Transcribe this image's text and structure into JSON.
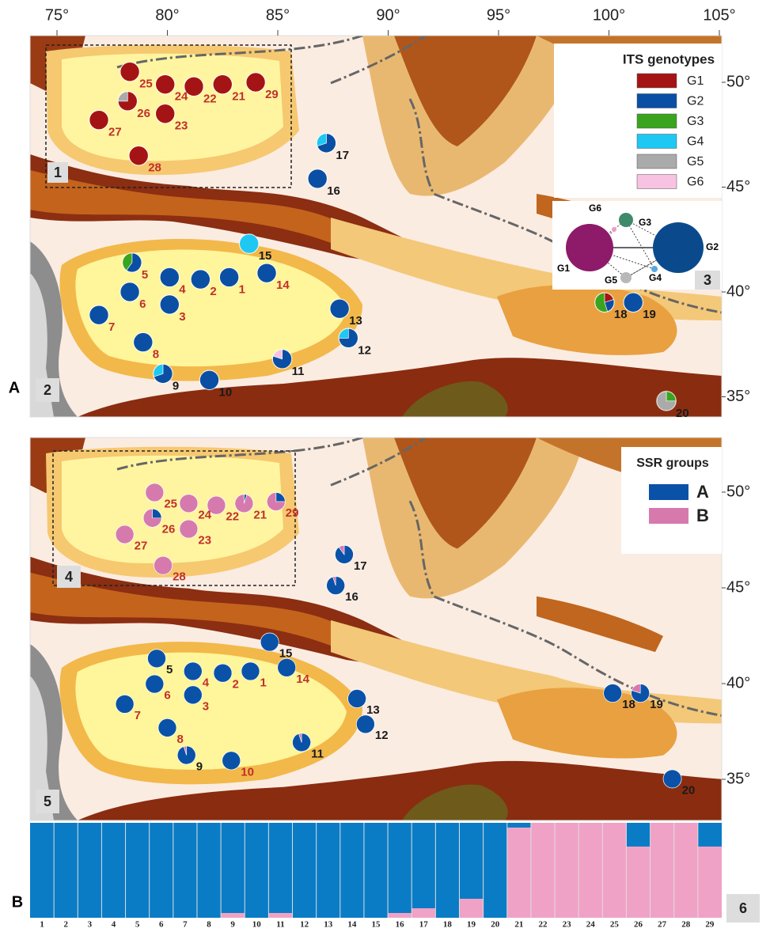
{
  "map_axes": {
    "lon_ticks": [
      {
        "value": 75,
        "label": "75°"
      },
      {
        "value": 80,
        "label": "80°"
      },
      {
        "value": 85,
        "label": "85°"
      },
      {
        "value": 90,
        "label": "90°"
      },
      {
        "value": 95,
        "label": "95°"
      },
      {
        "value": 100,
        "label": "100°"
      },
      {
        "value": 105,
        "label": "105°"
      }
    ],
    "lat_ticks": [
      {
        "value": 50,
        "label": "50°"
      },
      {
        "value": 45,
        "label": "45°"
      },
      {
        "value": 40,
        "label": "40°"
      },
      {
        "value": 35,
        "label": "35°"
      }
    ]
  },
  "panel_a": {
    "label": "A",
    "legend_title": "ITS  genotypes",
    "boxes": [
      "1",
      "2",
      "3"
    ],
    "genotypes": [
      {
        "name": "G1",
        "color": "#a51414"
      },
      {
        "name": "G2",
        "color": "#0a4fa3"
      },
      {
        "name": "G3",
        "color": "#3aa41e"
      },
      {
        "name": "G4",
        "color": "#1ec8f2"
      },
      {
        "name": "G5",
        "color": "#aaaaaa"
      },
      {
        "name": "G6",
        "color": "#f8c2e2"
      }
    ]
  },
  "panel_b": {
    "label": "B",
    "legend_title": "SSR groups",
    "boxes": [
      "4",
      "5",
      "6"
    ],
    "groups": [
      {
        "name": "A",
        "color": "#0a52a8",
        "bar_color": "#0a7cc6"
      },
      {
        "name": "B",
        "color": "#d67aae",
        "bar_color": "#f0a2c6"
      }
    ]
  },
  "sites": [
    {
      "label": "1",
      "lon": 82.8,
      "lat": 40.7,
      "its": [
        0,
        100,
        0,
        0,
        0,
        0
      ],
      "ssr": [
        100,
        0
      ],
      "label_color_a": "#c0302a",
      "label_color_b": "#c0302a"
    },
    {
      "label": "2",
      "lon": 81.5,
      "lat": 40.6,
      "its": [
        0,
        100,
        0,
        0,
        0,
        0
      ],
      "ssr": [
        100,
        0
      ],
      "label_color_a": "#c0302a",
      "label_color_b": "#c0302a"
    },
    {
      "label": "3",
      "lon": 80.1,
      "lat": 39.4,
      "its": [
        0,
        100,
        0,
        0,
        0,
        0
      ],
      "ssr": [
        100,
        0
      ],
      "label_color_a": "#c0302a",
      "label_color_b": "#c0302a"
    },
    {
      "label": "4",
      "lon": 80.1,
      "lat": 40.7,
      "its": [
        0,
        100,
        0,
        0,
        0,
        0
      ],
      "ssr": [
        100,
        0
      ],
      "label_color_a": "#c0302a",
      "label_color_b": "#c0302a"
    },
    {
      "label": "5",
      "lon": 78.4,
      "lat": 41.4,
      "its": [
        0,
        60,
        40,
        0,
        0,
        0
      ],
      "ssr": [
        100,
        0
      ],
      "label_color_a": "#c0302a",
      "label_color_b": "#1a1a1a"
    },
    {
      "label": "6",
      "lon": 78.3,
      "lat": 40.0,
      "its": [
        0,
        100,
        0,
        0,
        0,
        0
      ],
      "ssr": [
        100,
        0
      ],
      "label_color_a": "#c0302a",
      "label_color_b": "#c0302a"
    },
    {
      "label": "7",
      "lon": 76.9,
      "lat": 38.9,
      "its": [
        0,
        100,
        0,
        0,
        0,
        0
      ],
      "ssr": [
        100,
        0
      ],
      "label_color_a": "#c0302a",
      "label_color_b": "#c0302a"
    },
    {
      "label": "8",
      "lon": 78.9,
      "lat": 37.6,
      "its": [
        0,
        100,
        0,
        0,
        0,
        0
      ],
      "ssr": [
        100,
        0
      ],
      "label_color_a": "#c0302a",
      "label_color_b": "#c0302a"
    },
    {
      "label": "9",
      "lon": 79.8,
      "lat": 36.1,
      "its": [
        0,
        70,
        0,
        30,
        0,
        0
      ],
      "ssr": [
        95,
        5
      ],
      "label_color_a": "#1a1a1a",
      "label_color_b": "#1a1a1a"
    },
    {
      "label": "10",
      "lon": 81.9,
      "lat": 35.8,
      "its": [
        0,
        100,
        0,
        0,
        0,
        0
      ],
      "ssr": [
        100,
        0
      ],
      "label_color_a": "#1a1a1a",
      "label_color_b": "#c0302a"
    },
    {
      "label": "11",
      "lon": 85.2,
      "lat": 36.8,
      "its": [
        0,
        80,
        0,
        0,
        0,
        20
      ],
      "ssr": [
        95,
        5
      ],
      "label_color_a": "#1a1a1a",
      "label_color_b": "#1a1a1a"
    },
    {
      "label": "12",
      "lon": 88.2,
      "lat": 37.8,
      "its": [
        0,
        75,
        0,
        25,
        0,
        0
      ],
      "ssr": [
        100,
        0
      ],
      "label_color_a": "#1a1a1a",
      "label_color_b": "#1a1a1a"
    },
    {
      "label": "13",
      "lon": 87.8,
      "lat": 39.2,
      "its": [
        0,
        100,
        0,
        0,
        0,
        0
      ],
      "ssr": [
        100,
        0
      ],
      "label_color_a": "#1a1a1a",
      "label_color_b": "#1a1a1a"
    },
    {
      "label": "14",
      "lon": 84.5,
      "lat": 40.9,
      "its": [
        0,
        100,
        0,
        0,
        0,
        0
      ],
      "ssr": [
        100,
        0
      ],
      "label_color_a": "#c0302a",
      "label_color_b": "#c0302a"
    },
    {
      "label": "15",
      "lon": 83.7,
      "lat": 42.3,
      "its": [
        0,
        0,
        0,
        100,
        0,
        0
      ],
      "ssr": [
        100,
        0
      ],
      "label_color_a": "#1a1a1a",
      "label_color_b": "#1a1a1a"
    },
    {
      "label": "16",
      "lon": 86.8,
      "lat": 45.4,
      "its": [
        0,
        100,
        0,
        0,
        0,
        0
      ],
      "ssr": [
        95,
        5
      ],
      "label_color_a": "#1a1a1a",
      "label_color_b": "#1a1a1a"
    },
    {
      "label": "17",
      "lon": 87.2,
      "lat": 47.1,
      "its": [
        0,
        70,
        0,
        30,
        0,
        0
      ],
      "ssr": [
        90,
        10
      ],
      "label_color_a": "#1a1a1a",
      "label_color_b": "#1a1a1a"
    },
    {
      "label": "18",
      "lon": 99.8,
      "lat": 39.5,
      "its": [
        20,
        25,
        55,
        0,
        0,
        0
      ],
      "ssr": [
        100,
        0
      ],
      "label_color_a": "#1a1a1a",
      "label_color_b": "#1a1a1a"
    },
    {
      "label": "19",
      "lon": 101.1,
      "lat": 39.5,
      "its": [
        0,
        100,
        0,
        0,
        0,
        0
      ],
      "ssr": [
        80,
        20
      ],
      "label_color_a": "#1a1a1a",
      "label_color_b": "#1a1a1a"
    },
    {
      "label": "20",
      "lon": 102.6,
      "lat": 34.8,
      "its": [
        0,
        0,
        25,
        0,
        75,
        0
      ],
      "ssr": [
        100,
        0
      ],
      "label_color_a": "#1a1a1a",
      "label_color_b": "#1a1a1a"
    },
    {
      "label": "21",
      "lon": 82.5,
      "lat": 49.9,
      "its": [
        100,
        0,
        0,
        0,
        0,
        0
      ],
      "ssr": [
        5,
        95
      ],
      "label_color_a": "#c0302a",
      "label_color_b": "#c0302a"
    },
    {
      "label": "22",
      "lon": 81.2,
      "lat": 49.8,
      "its": [
        100,
        0,
        0,
        0,
        0,
        0
      ],
      "ssr": [
        0,
        100
      ],
      "label_color_a": "#c0302a",
      "label_color_b": "#c0302a"
    },
    {
      "label": "23",
      "lon": 79.9,
      "lat": 48.5,
      "its": [
        100,
        0,
        0,
        0,
        0,
        0
      ],
      "ssr": [
        0,
        100
      ],
      "label_color_a": "#c0302a",
      "label_color_b": "#c0302a"
    },
    {
      "label": "24",
      "lon": 79.9,
      "lat": 49.9,
      "its": [
        100,
        0,
        0,
        0,
        0,
        0
      ],
      "ssr": [
        0,
        100
      ],
      "label_color_a": "#c0302a",
      "label_color_b": "#c0302a"
    },
    {
      "label": "25",
      "lon": 78.3,
      "lat": 50.5,
      "its": [
        100,
        0,
        0,
        0,
        0,
        0
      ],
      "ssr": [
        0,
        100
      ],
      "label_color_a": "#c0302a",
      "label_color_b": "#c0302a"
    },
    {
      "label": "26",
      "lon": 78.2,
      "lat": 49.1,
      "its": [
        75,
        0,
        0,
        0,
        25,
        0
      ],
      "ssr": [
        25,
        75
      ],
      "label_color_a": "#c0302a",
      "label_color_b": "#c0302a"
    },
    {
      "label": "27",
      "lon": 76.9,
      "lat": 48.2,
      "its": [
        100,
        0,
        0,
        0,
        0,
        0
      ],
      "ssr": [
        0,
        100
      ],
      "label_color_a": "#c0302a",
      "label_color_b": "#c0302a"
    },
    {
      "label": "28",
      "lon": 78.7,
      "lat": 46.5,
      "its": [
        100,
        0,
        0,
        0,
        0,
        0
      ],
      "ssr": [
        0,
        100
      ],
      "label_color_a": "#c0302a",
      "label_color_b": "#c0302a"
    },
    {
      "label": "29",
      "lon": 84.0,
      "lat": 50.0,
      "its": [
        100,
        0,
        0,
        0,
        0,
        0
      ],
      "ssr": [
        25,
        75
      ],
      "label_color_a": "#c0302a",
      "label_color_b": "#c0302a"
    }
  ]
}
